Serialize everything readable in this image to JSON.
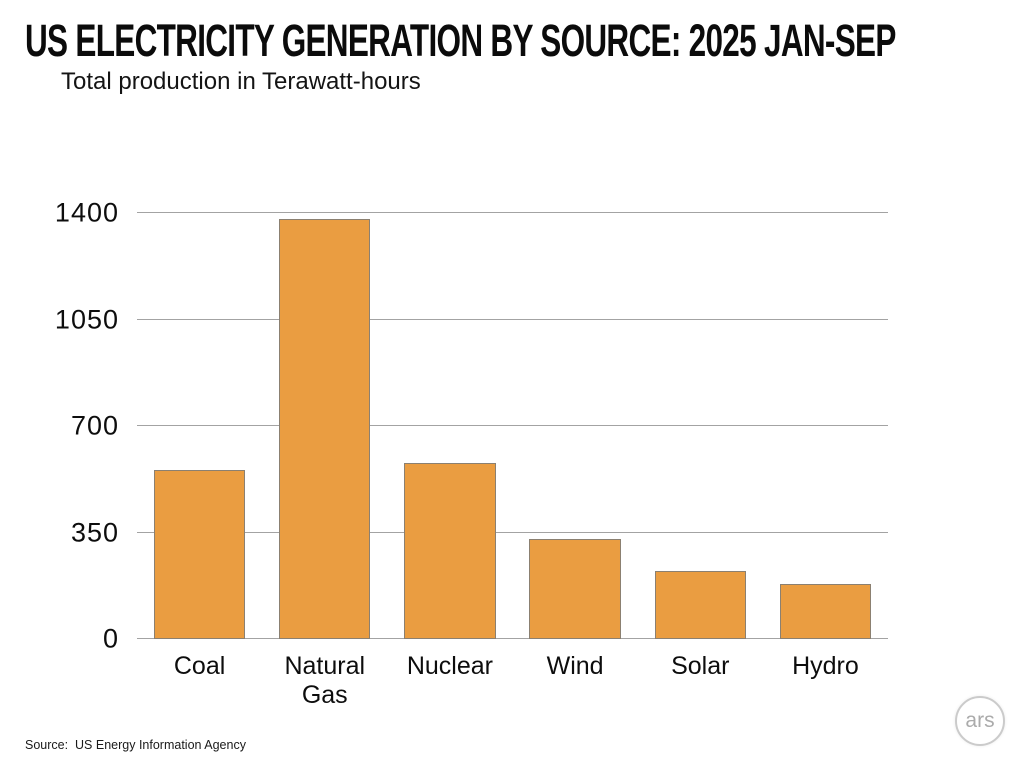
{
  "title": "US ELECTRICITY GENERATION BY SOURCE: 2025 JAN-SEP",
  "subtitle": "Total production in Terawatt-hours",
  "source_note": "Source:  US Energy Information Agency",
  "logo": {
    "text": "ars"
  },
  "colors": {
    "bar_fill": "#ea9d41",
    "bar_border": "#8b8071",
    "gridline": "#a3a3a3",
    "title_text": "#0b0b0b",
    "logo_ring": "#cbcbcb",
    "logo_text": "#ababab"
  },
  "chart_data": {
    "type": "bar",
    "title": "US ELECTRICITY GENERATION BY SOURCE: 2025 JAN-SEP",
    "subtitle": "Total production in Terawatt-hours",
    "categories": [
      "Coal",
      "Natural Gas",
      "Nuclear",
      "Wind",
      "Solar",
      "Hydro"
    ],
    "values": [
      555,
      1380,
      580,
      330,
      225,
      180
    ],
    "xlabel": "",
    "ylabel": "",
    "ylim": [
      0,
      1400
    ],
    "yticks": [
      0,
      350,
      700,
      1050,
      1400
    ],
    "grid": true,
    "legend": false
  }
}
